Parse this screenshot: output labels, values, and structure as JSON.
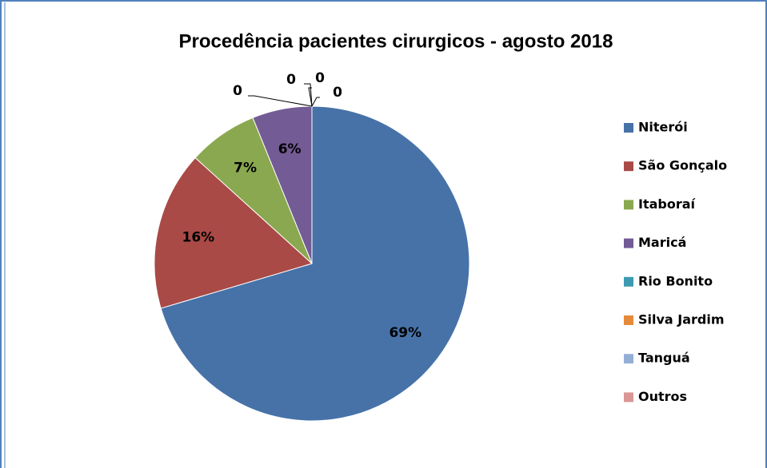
{
  "chart_data": {
    "type": "pie",
    "title": "Procedência pacientes cirurgicos - agosto 2018",
    "categories": [
      "Niterói",
      "São Gonçalo",
      "Itaboraí",
      "Maricá",
      "Rio Bonito",
      "Silva Jardim",
      "Tanguá",
      "Outros"
    ],
    "values": [
      69,
      16,
      7,
      6,
      0,
      0,
      0,
      0
    ],
    "value_labels": [
      "69%",
      "16%",
      "7%",
      "6%",
      "0",
      "0",
      "0",
      "0"
    ],
    "colors": [
      "#4672a8",
      "#a94a47",
      "#8aa84f",
      "#735b95",
      "#3d9bb1",
      "#e58a3a",
      "#94afd6",
      "#d99694"
    ],
    "legend": "right"
  }
}
